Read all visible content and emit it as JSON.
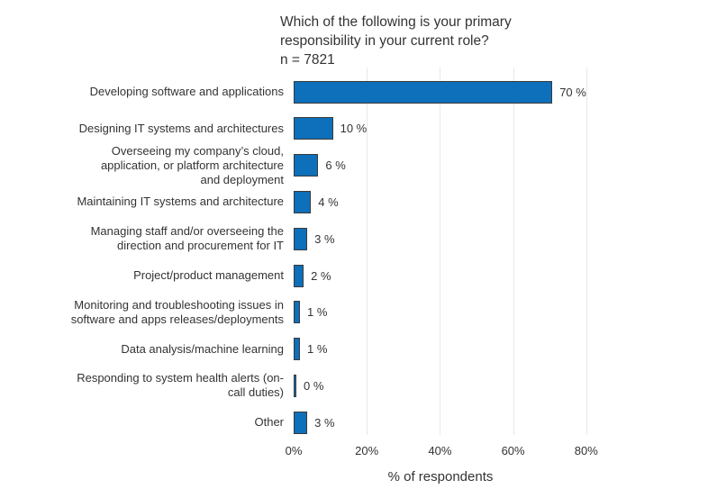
{
  "title": {
    "line1": "Which of the following is your primary",
    "line2": "responsibility in your current role?",
    "sample_size": "n = 7821"
  },
  "colors": {
    "bar_fill": "#0e6fba",
    "bar_border": "#3a3a3a",
    "gridline": "#e8e8e8",
    "text": "#333333"
  },
  "chart_data": {
    "type": "bar",
    "orientation": "horizontal",
    "title": "Which of the following is your primary responsibility in your current role?",
    "subtitle": "n = 7821",
    "categories": [
      "Developing software and applications",
      "Designing IT systems and architectures",
      "Overseeing my company’s cloud, application, or platform architecture and deployment",
      "Maintaining IT systems and architecture",
      "Managing staff and/or overseeing the direction and procurement for IT",
      "Project/product management",
      "Monitoring and troubleshooting issues in software and apps releases/deployments",
      "Data analysis/machine learning",
      "Responding to system health alerts (on-call duties)",
      "Other"
    ],
    "category_lines": [
      [
        "Developing software and applications"
      ],
      [
        "Designing IT systems and architectures"
      ],
      [
        "Overseeing my company’s cloud,",
        "application, or platform architecture",
        "and deployment"
      ],
      [
        "Maintaining IT systems and architecture"
      ],
      [
        "Managing staff and/or overseeing the",
        "direction and procurement for IT"
      ],
      [
        "Project/product management"
      ],
      [
        "Monitoring and troubleshooting issues in",
        "software and apps releases/deployments"
      ],
      [
        "Data analysis/machine learning"
      ],
      [
        "Responding to system health alerts (on-",
        "call duties)"
      ],
      [
        "Other"
      ]
    ],
    "values": [
      70,
      10,
      6,
      4,
      3,
      2,
      1,
      1,
      0,
      3
    ],
    "value_labels": [
      "70 %",
      "10 %",
      "6 %",
      "4 %",
      "3 %",
      "2 %",
      "1 %",
      "1 %",
      "0 %",
      "3 %"
    ],
    "xlabel": "% of respondents",
    "xlim": [
      0,
      80
    ],
    "xticks": [
      "0%",
      "20%",
      "40%",
      "60%",
      "80%"
    ],
    "xtick_values": [
      0,
      20,
      40,
      60,
      80
    ],
    "grid": true,
    "legend": false
  }
}
